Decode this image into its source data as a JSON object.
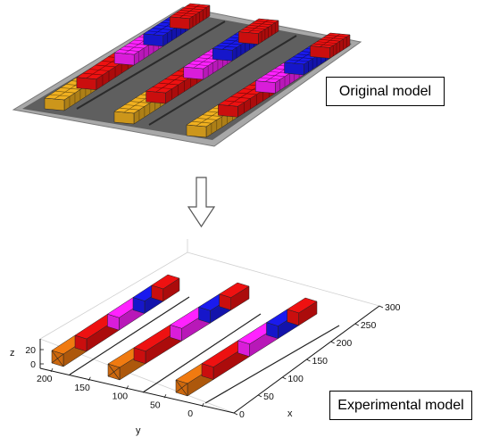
{
  "labels": {
    "original": "Original model",
    "experimental": "Experimental model"
  },
  "arrow": {
    "direction": "down"
  },
  "axes": {
    "x_title": "x",
    "y_title": "y",
    "z_title": "z",
    "x_ticks": [
      "0",
      "50",
      "100",
      "150",
      "200",
      "250",
      "300"
    ],
    "y_ticks": [
      "0",
      "50",
      "100",
      "150",
      "200"
    ],
    "z_ticks": [
      "0",
      "20"
    ]
  },
  "colors": {
    "red": "#ee1111",
    "magenta": "#ff22ff",
    "blue": "#1a1aee",
    "orange": "#f07a10",
    "yellow": "#f0b020",
    "base": "#6a6a6a",
    "border": "#9a9a9a"
  },
  "row_segment_order": [
    "orange",
    "red",
    "magenta",
    "blue",
    "red"
  ]
}
